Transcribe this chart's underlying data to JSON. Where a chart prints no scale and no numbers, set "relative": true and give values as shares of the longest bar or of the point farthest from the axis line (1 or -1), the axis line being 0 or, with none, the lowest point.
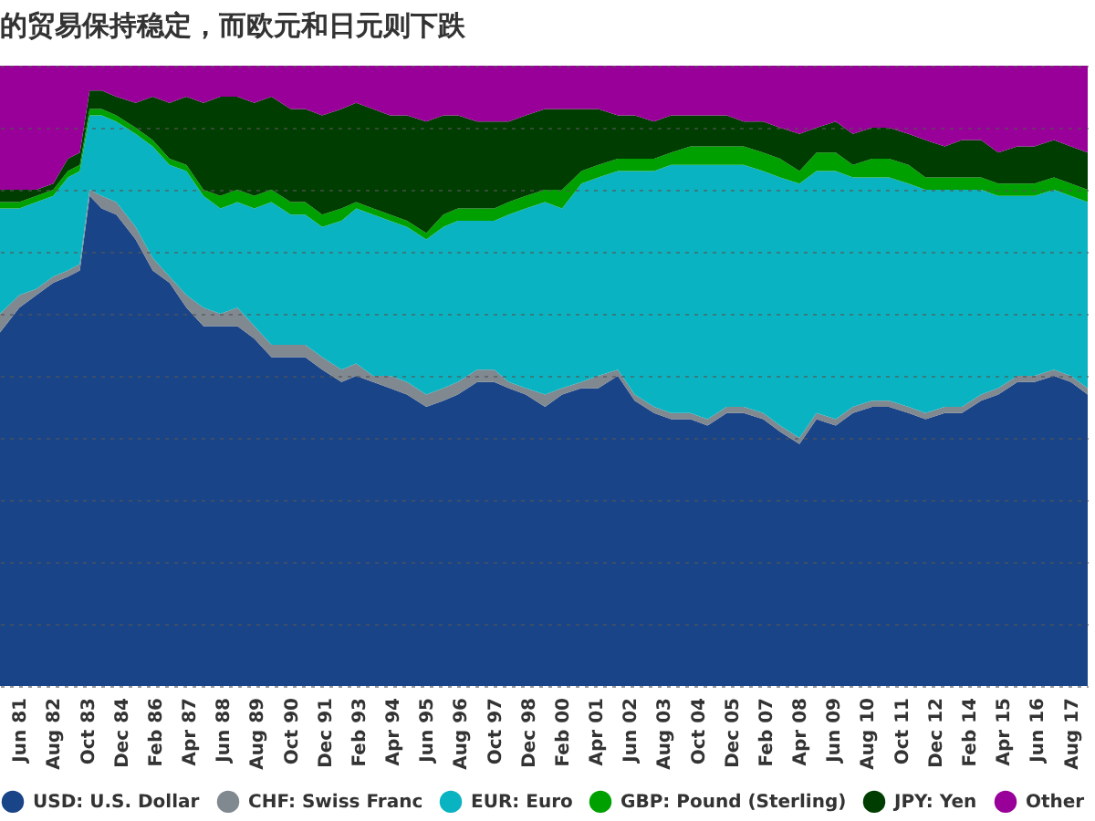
{
  "chart_data": {
    "type": "area",
    "title": "的贸易保持稳定，而欧元和日元则下跌",
    "relative": true,
    "stacked": true,
    "grid": "y",
    "legend": "bottom",
    "x": [
      "1980-10",
      "1981-06",
      "1982-01",
      "1982-08",
      "1983-02",
      "1983-07",
      "1983-11",
      "1984-04",
      "1984-10",
      "1985-06",
      "1986-01",
      "1986-08",
      "1987-03",
      "1987-10",
      "1988-05",
      "1988-12",
      "1989-07",
      "1990-02",
      "1990-10",
      "1991-04",
      "1991-11",
      "1992-07",
      "1993-01",
      "1993-08",
      "1994-03",
      "1994-10",
      "1995-06",
      "1996-01",
      "1996-07",
      "1997-03",
      "1997-10",
      "1998-04",
      "1998-11",
      "1999-07",
      "2000-02",
      "2000-10",
      "2001-05",
      "2002-01",
      "2002-08",
      "2003-04",
      "2003-11",
      "2004-07",
      "2005-02",
      "2005-10",
      "2006-05",
      "2007-01",
      "2007-08",
      "2008-04",
      "2008-11",
      "2009-07",
      "2010-02",
      "2010-10",
      "2011-05",
      "2012-01",
      "2012-08",
      "2013-04",
      "2013-11",
      "2014-07",
      "2015-02",
      "2015-10",
      "2016-05",
      "2017-01",
      "2017-08",
      "2018-03"
    ],
    "xlim": [
      "1980-10",
      "2018-03"
    ],
    "xticks": [
      {
        "value": "1981-06",
        "label": "Jun 81"
      },
      {
        "value": "1982-08",
        "label": "Aug 82"
      },
      {
        "value": "1983-10",
        "label": "Oct 83"
      },
      {
        "value": "1984-12",
        "label": "Dec 84"
      },
      {
        "value": "1986-02",
        "label": "Feb 86"
      },
      {
        "value": "1987-04",
        "label": "Apr 87"
      },
      {
        "value": "1988-06",
        "label": "Jun 88"
      },
      {
        "value": "1989-08",
        "label": "Aug 89"
      },
      {
        "value": "1990-10",
        "label": "Oct 90"
      },
      {
        "value": "1991-12",
        "label": "Dec 91"
      },
      {
        "value": "1993-02",
        "label": "Feb 93"
      },
      {
        "value": "1994-04",
        "label": "Apr 94"
      },
      {
        "value": "1995-06",
        "label": "Jun 95"
      },
      {
        "value": "1996-08",
        "label": "Aug 96"
      },
      {
        "value": "1997-10",
        "label": "Oct 97"
      },
      {
        "value": "1998-12",
        "label": "Dec 98"
      },
      {
        "value": "2000-02",
        "label": "Feb 00"
      },
      {
        "value": "2001-04",
        "label": "Apr 01"
      },
      {
        "value": "2002-06",
        "label": "Jun 02"
      },
      {
        "value": "2003-08",
        "label": "Aug 03"
      },
      {
        "value": "2004-10",
        "label": "Oct 04"
      },
      {
        "value": "2005-12",
        "label": "Dec 05"
      },
      {
        "value": "2007-02",
        "label": "Feb 07"
      },
      {
        "value": "2008-04",
        "label": "Apr 08"
      },
      {
        "value": "2009-06",
        "label": "Jun 09"
      },
      {
        "value": "2010-08",
        "label": "Aug 10"
      },
      {
        "value": "2011-10",
        "label": "Oct 11"
      },
      {
        "value": "2012-12",
        "label": "Dec 12"
      },
      {
        "value": "2014-02",
        "label": "Feb 14"
      },
      {
        "value": "2015-04",
        "label": "Apr 15"
      },
      {
        "value": "2016-06",
        "label": "Jun 16"
      },
      {
        "value": "2017-08",
        "label": "Aug 17"
      }
    ],
    "series": [
      {
        "name": "USD: U.S. Dollar",
        "color": "#1a4488",
        "values": [
          0.57,
          0.61,
          0.63,
          0.65,
          0.66,
          0.67,
          0.79,
          0.77,
          0.76,
          0.72,
          0.67,
          0.65,
          0.61,
          0.58,
          0.58,
          0.58,
          0.56,
          0.53,
          0.53,
          0.53,
          0.51,
          0.49,
          0.5,
          0.49,
          0.48,
          0.47,
          0.45,
          0.46,
          0.47,
          0.49,
          0.49,
          0.48,
          0.47,
          0.45,
          0.47,
          0.48,
          0.48,
          0.5,
          0.46,
          0.44,
          0.43,
          0.43,
          0.42,
          0.44,
          0.44,
          0.43,
          0.41,
          0.39,
          0.43,
          0.42,
          0.44,
          0.45,
          0.45,
          0.44,
          0.43,
          0.44,
          0.44,
          0.46,
          0.47,
          0.49,
          0.49,
          0.5,
          0.49,
          0.47
        ]
      },
      {
        "name": "CHF: Swiss Franc",
        "color": "#808890",
        "values": [
          0.03,
          0.02,
          0.01,
          0.01,
          0.01,
          0.01,
          0.01,
          0.02,
          0.02,
          0.02,
          0.02,
          0.01,
          0.02,
          0.03,
          0.02,
          0.03,
          0.02,
          0.02,
          0.02,
          0.02,
          0.02,
          0.02,
          0.02,
          0.01,
          0.02,
          0.02,
          0.02,
          0.02,
          0.02,
          0.02,
          0.02,
          0.01,
          0.01,
          0.02,
          0.01,
          0.01,
          0.02,
          0.01,
          0.01,
          0.01,
          0.01,
          0.01,
          0.01,
          0.01,
          0.01,
          0.01,
          0.01,
          0.01,
          0.01,
          0.01,
          0.01,
          0.01,
          0.01,
          0.01,
          0.01,
          0.01,
          0.01,
          0.01,
          0.01,
          0.01,
          0.01,
          0.01,
          0.01,
          0.01
        ]
      },
      {
        "name": "EUR: Euro",
        "color": "#0ab3c1",
        "values": [
          0.17,
          0.14,
          0.14,
          0.13,
          0.15,
          0.15,
          0.12,
          0.13,
          0.13,
          0.15,
          0.18,
          0.18,
          0.2,
          0.18,
          0.17,
          0.17,
          0.19,
          0.23,
          0.21,
          0.21,
          0.21,
          0.24,
          0.25,
          0.26,
          0.25,
          0.25,
          0.25,
          0.26,
          0.26,
          0.24,
          0.24,
          0.27,
          0.29,
          0.31,
          0.29,
          0.32,
          0.32,
          0.32,
          0.36,
          0.38,
          0.4,
          0.4,
          0.41,
          0.39,
          0.39,
          0.39,
          0.4,
          0.41,
          0.39,
          0.4,
          0.37,
          0.36,
          0.36,
          0.36,
          0.36,
          0.35,
          0.35,
          0.33,
          0.31,
          0.29,
          0.29,
          0.29,
          0.29,
          0.3
        ]
      },
      {
        "name": "GBP: Pound (Sterling)",
        "color": "#00a000",
        "values": [
          0.01,
          0.01,
          0.01,
          0.01,
          0.01,
          0.01,
          0.01,
          0.01,
          0.01,
          0.01,
          0.01,
          0.01,
          0.01,
          0.01,
          0.02,
          0.02,
          0.02,
          0.02,
          0.02,
          0.02,
          0.02,
          0.02,
          0.01,
          0.01,
          0.01,
          0.01,
          0.01,
          0.02,
          0.02,
          0.02,
          0.02,
          0.02,
          0.02,
          0.02,
          0.03,
          0.02,
          0.02,
          0.02,
          0.02,
          0.02,
          0.02,
          0.03,
          0.03,
          0.03,
          0.03,
          0.03,
          0.03,
          0.02,
          0.03,
          0.03,
          0.02,
          0.03,
          0.03,
          0.03,
          0.02,
          0.02,
          0.02,
          0.02,
          0.02,
          0.02,
          0.02,
          0.02,
          0.02,
          0.02
        ]
      },
      {
        "name": "JPY: Yen",
        "color": "#003d00",
        "values": [
          0.02,
          0.02,
          0.01,
          0.01,
          0.02,
          0.02,
          0.03,
          0.03,
          0.03,
          0.04,
          0.07,
          0.09,
          0.11,
          0.14,
          0.16,
          0.15,
          0.15,
          0.15,
          0.15,
          0.15,
          0.16,
          0.16,
          0.16,
          0.16,
          0.16,
          0.17,
          0.18,
          0.16,
          0.15,
          0.14,
          0.14,
          0.13,
          0.13,
          0.13,
          0.13,
          0.1,
          0.09,
          0.07,
          0.07,
          0.06,
          0.06,
          0.05,
          0.05,
          0.05,
          0.04,
          0.05,
          0.05,
          0.06,
          0.04,
          0.05,
          0.05,
          0.05,
          0.05,
          0.05,
          0.06,
          0.05,
          0.06,
          0.06,
          0.05,
          0.06,
          0.06,
          0.06,
          0.06,
          0.06
        ]
      },
      {
        "name": "Other",
        "color": "#990099",
        "values": [
          0.2,
          0.2,
          0.2,
          0.19,
          0.15,
          0.14,
          0.04,
          0.04,
          0.05,
          0.06,
          0.05,
          0.06,
          0.05,
          0.06,
          0.05,
          0.05,
          0.06,
          0.05,
          0.07,
          0.07,
          0.08,
          0.07,
          0.06,
          0.07,
          0.08,
          0.08,
          0.09,
          0.08,
          0.08,
          0.09,
          0.09,
          0.09,
          0.08,
          0.07,
          0.07,
          0.07,
          0.07,
          0.08,
          0.08,
          0.09,
          0.08,
          0.08,
          0.08,
          0.08,
          0.09,
          0.09,
          0.1,
          0.11,
          0.1,
          0.09,
          0.11,
          0.1,
          0.1,
          0.11,
          0.12,
          0.13,
          0.12,
          0.12,
          0.14,
          0.13,
          0.13,
          0.12,
          0.13,
          0.14
        ]
      }
    ]
  }
}
